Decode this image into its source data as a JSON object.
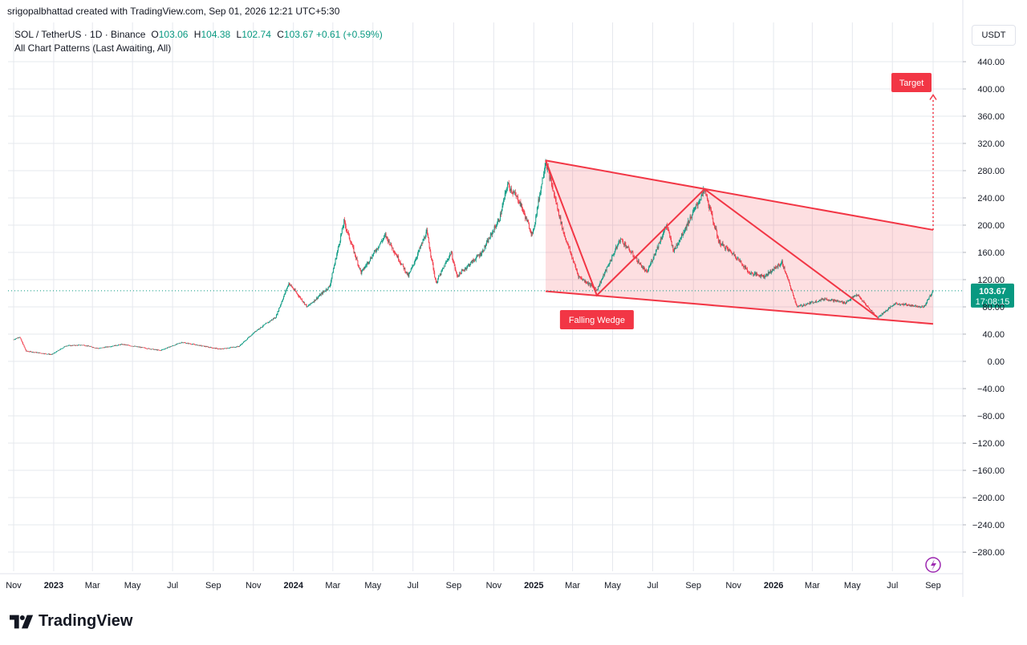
{
  "credit": "srigopalbhattad created with TradingView.com, Sep 01, 2026 12:21 UTC+5:30",
  "legend": {
    "pair": "SOL / TetherUS · 1D · Binance",
    "o_label": "O",
    "o_value": "103.06",
    "h_label": "H",
    "h_value": "104.38",
    "l_label": "L",
    "l_value": "102.74",
    "c_label": "C",
    "c_value": "103.67",
    "change": "+0.61 (+0.59%)",
    "indicator": "All Chart Patterns (Last Awaiting, All)"
  },
  "unit": "USDT",
  "price_tag": {
    "price": "103.67",
    "countdown": "17:08:15"
  },
  "brand": "TradingView",
  "colors": {
    "up": "#089981",
    "down": "#f23645",
    "pattern": "#f23645",
    "pattern_fill": "#f23645",
    "grid": "#e6e8ee",
    "price_line": "#089981"
  },
  "chart_data": {
    "type": "candlestick",
    "symbol": "SOL/USDT",
    "timeframe": "1D",
    "exchange": "Binance",
    "ylim": [
      -300,
      490
    ],
    "x_ticks": [
      "Nov",
      "2023",
      "Mar",
      "May",
      "Jul",
      "Sep",
      "Nov",
      "2024",
      "Mar",
      "May",
      "Jul",
      "Sep",
      "Nov",
      "2025",
      "Mar",
      "May",
      "Jul",
      "Sep",
      "Nov",
      "2026",
      "Mar",
      "May",
      "Jul",
      "Sep"
    ],
    "y_ticks": [
      "440.00",
      "400.00",
      "360.00",
      "320.00",
      "280.00",
      "240.00",
      "200.00",
      "160.00",
      "120.00",
      "80.00",
      "40.00",
      "0.00",
      "−40.00",
      "−80.00",
      "−120.00",
      "−160.00",
      "−200.00",
      "−240.00",
      "−280.00"
    ],
    "last_price": 103.67,
    "price_path": [
      {
        "x": "2022-11-01",
        "y": 32
      },
      {
        "x": "2022-11-10",
        "y": 36
      },
      {
        "x": "2022-11-20",
        "y": 15
      },
      {
        "x": "2022-12-29",
        "y": 10
      },
      {
        "x": "2023-01-20",
        "y": 23
      },
      {
        "x": "2023-02-15",
        "y": 24
      },
      {
        "x": "2023-03-10",
        "y": 19
      },
      {
        "x": "2023-04-15",
        "y": 25
      },
      {
        "x": "2023-06-12",
        "y": 16
      },
      {
        "x": "2023-07-15",
        "y": 28
      },
      {
        "x": "2023-09-11",
        "y": 18
      },
      {
        "x": "2023-10-10",
        "y": 22
      },
      {
        "x": "2023-11-05",
        "y": 45
      },
      {
        "x": "2023-12-05",
        "y": 65
      },
      {
        "x": "2023-12-25",
        "y": 115
      },
      {
        "x": "2024-01-22",
        "y": 80
      },
      {
        "x": "2024-02-25",
        "y": 110
      },
      {
        "x": "2024-03-18",
        "y": 205
      },
      {
        "x": "2024-04-13",
        "y": 130
      },
      {
        "x": "2024-05-20",
        "y": 185
      },
      {
        "x": "2024-06-24",
        "y": 125
      },
      {
        "x": "2024-07-22",
        "y": 190
      },
      {
        "x": "2024-08-05",
        "y": 115
      },
      {
        "x": "2024-08-28",
        "y": 160
      },
      {
        "x": "2024-09-06",
        "y": 125
      },
      {
        "x": "2024-10-14",
        "y": 160
      },
      {
        "x": "2024-11-10",
        "y": 210
      },
      {
        "x": "2024-11-22",
        "y": 260
      },
      {
        "x": "2024-12-10",
        "y": 235
      },
      {
        "x": "2024-12-30",
        "y": 185
      },
      {
        "x": "2025-01-19",
        "y": 295
      },
      {
        "x": "2025-02-15",
        "y": 190
      },
      {
        "x": "2025-03-10",
        "y": 125
      },
      {
        "x": "2025-04-07",
        "y": 105
      },
      {
        "x": "2025-05-13",
        "y": 180
      },
      {
        "x": "2025-06-22",
        "y": 130
      },
      {
        "x": "2025-07-22",
        "y": 200
      },
      {
        "x": "2025-08-02",
        "y": 162
      },
      {
        "x": "2025-09-18",
        "y": 252
      },
      {
        "x": "2025-10-10",
        "y": 175
      },
      {
        "x": "2025-11-04",
        "y": 155
      },
      {
        "x": "2025-11-25",
        "y": 130
      },
      {
        "x": "2025-12-18",
        "y": 125
      },
      {
        "x": "2026-01-14",
        "y": 145
      },
      {
        "x": "2026-02-06",
        "y": 80
      },
      {
        "x": "2026-03-20",
        "y": 92
      },
      {
        "x": "2026-04-20",
        "y": 86
      },
      {
        "x": "2026-05-08",
        "y": 98
      },
      {
        "x": "2026-06-08",
        "y": 64
      },
      {
        "x": "2026-07-05",
        "y": 85
      },
      {
        "x": "2026-08-18",
        "y": 80
      },
      {
        "x": "2026-09-01",
        "y": 104
      }
    ],
    "pattern": {
      "name": "Falling Wedge",
      "upper_line": [
        {
          "x": "2025-01-19",
          "y": 295
        },
        {
          "x": "2026-09-01",
          "y": 193
        }
      ],
      "lower_line": [
        {
          "x": "2025-01-19",
          "y": 103
        },
        {
          "x": "2026-09-01",
          "y": 55
        }
      ],
      "zigzag": [
        {
          "x": "2025-01-19",
          "y": 295
        },
        {
          "x": "2025-04-07",
          "y": 97
        },
        {
          "x": "2025-09-18",
          "y": 253
        },
        {
          "x": "2026-06-08",
          "y": 65
        }
      ],
      "target_label": "Target",
      "target_from": {
        "x": "2026-09-01",
        "y": 193
      },
      "target_to": {
        "x": "2026-09-01",
        "y": 390
      }
    }
  }
}
